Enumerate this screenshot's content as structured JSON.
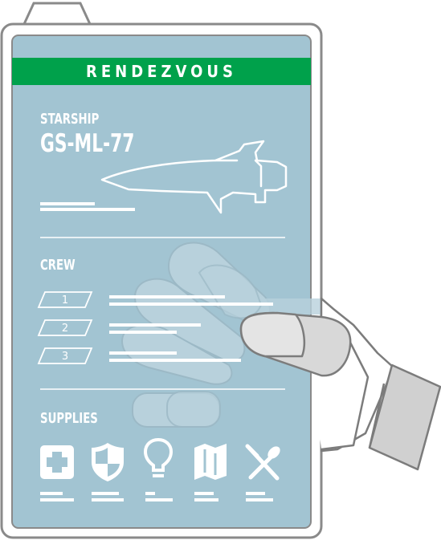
{
  "card": {
    "title": "RENDEZVOUS",
    "starship_label": "STARSHIP",
    "starship_id": "GS-ML-77",
    "crew_label": "CREW",
    "crew_slots": [
      "1",
      "2",
      "3"
    ],
    "supplies_label": "SUPPLIES"
  },
  "supplies": {
    "icons": [
      "medical-kit-icon",
      "shield-icon",
      "lightbulb-icon",
      "map-icon",
      "fork-spoon-icon"
    ]
  },
  "colors": {
    "panel": "#a2c4d2",
    "banner": "#00a14b",
    "outline": "#8a8a8a",
    "glove": "#dcdcdc"
  }
}
